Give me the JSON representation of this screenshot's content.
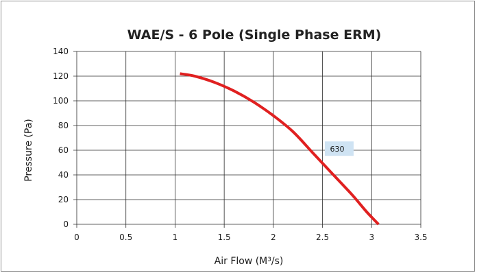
{
  "chart_data": {
    "type": "line",
    "title": "WAE/S - 6 Pole (Single Phase ERM)",
    "xlabel": "Air Flow (M³/s)",
    "ylabel": "Pressure (Pa)",
    "xlim": [
      0,
      3.5
    ],
    "ylim": [
      0,
      140
    ],
    "xticks": [
      "0",
      "0.5",
      "1",
      "1.5",
      "2",
      "2.5",
      "3",
      "3.5"
    ],
    "yticks": [
      "0",
      "20",
      "40",
      "60",
      "80",
      "100",
      "120",
      "140"
    ],
    "grid": true,
    "series": [
      {
        "name": "630",
        "color": "#e02020",
        "points": [
          [
            1.05,
            122
          ],
          [
            1.2,
            120
          ],
          [
            1.4,
            115
          ],
          [
            1.6,
            108
          ],
          [
            1.8,
            99
          ],
          [
            2.0,
            88
          ],
          [
            2.2,
            75
          ],
          [
            2.4,
            58
          ],
          [
            2.6,
            41
          ],
          [
            2.8,
            24
          ],
          [
            2.95,
            10
          ],
          [
            3.07,
            0
          ]
        ]
      }
    ],
    "annotation": {
      "text": "630",
      "x": 2.67,
      "y": 61
    }
  }
}
